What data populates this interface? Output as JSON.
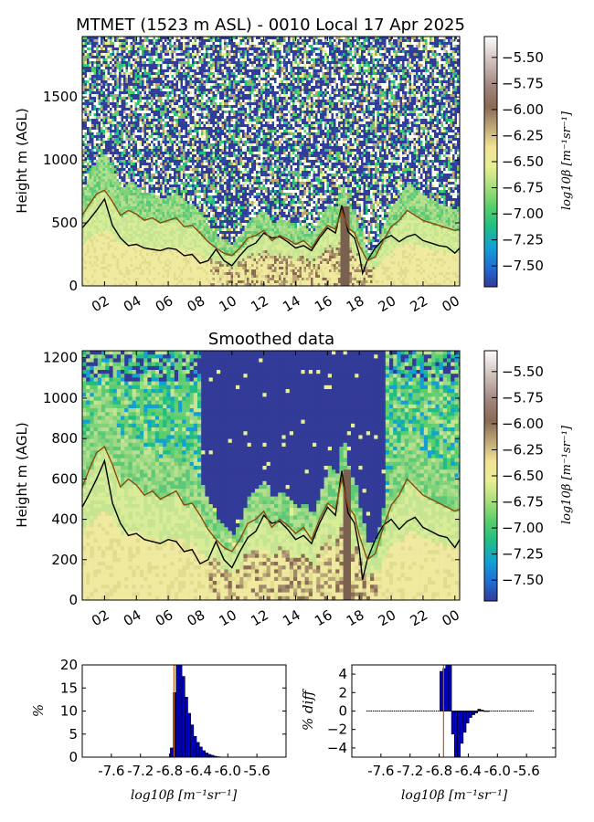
{
  "chart_data": [
    {
      "type": "heatmap",
      "title": "MTMET (1523 m ASL) - 0010 Local 17 Apr 2025",
      "xlabel": "",
      "ylabel": "Height m (AGL)",
      "x_ticks": [
        "02",
        "04",
        "06",
        "08",
        "10",
        "12",
        "14",
        "16",
        "18",
        "20",
        "22",
        "00"
      ],
      "x_range_hours": [
        0.6,
        24.3
      ],
      "y_ticks": [
        "0",
        "500",
        "1000",
        "1500"
      ],
      "y_tick_values": [
        0,
        500,
        1000,
        1500
      ],
      "ylim": [
        0,
        1980
      ],
      "colorbar_label": "log10β [m⁻¹sr⁻¹]",
      "colorbar_ticks": [
        "−5.50",
        "−5.75",
        "−6.00",
        "−6.25",
        "−6.50",
        "−6.75",
        "−7.00",
        "−7.25",
        "−7.50"
      ],
      "colorbar_range": [
        -7.7,
        -5.3
      ],
      "series": [
        {
          "color": "#000000",
          "x": [
            0.6,
            1,
            1.5,
            2,
            2.5,
            3,
            3.5,
            4,
            4.5,
            5,
            5.5,
            6,
            6.5,
            7,
            7.5,
            8,
            8.5,
            9,
            9.5,
            10,
            10.5,
            11,
            11.5,
            12,
            12.5,
            13,
            13.5,
            14,
            14.5,
            15,
            15.5,
            16,
            16.5,
            16.9,
            17.3,
            17.7,
            18,
            18.2,
            18.5,
            19,
            19.5,
            20,
            20.5,
            21,
            21.5,
            22,
            22.5,
            23,
            23.5,
            24,
            24.3
          ],
          "y": [
            460,
            520,
            600,
            690,
            480,
            380,
            320,
            330,
            300,
            290,
            280,
            300,
            290,
            240,
            250,
            180,
            200,
            290,
            200,
            160,
            240,
            310,
            340,
            420,
            380,
            390,
            350,
            300,
            320,
            280,
            380,
            460,
            420,
            640,
            430,
            380,
            250,
            100,
            200,
            300,
            370,
            400,
            350,
            390,
            410,
            360,
            340,
            320,
            310,
            260,
            300
          ]
        },
        {
          "color": "#8b4a0c",
          "x": [
            0.6,
            1,
            1.5,
            2,
            2.5,
            3,
            3.5,
            4,
            4.5,
            5,
            5.5,
            6,
            6.5,
            7,
            7.5,
            8,
            8.5,
            9,
            9.5,
            10,
            10.5,
            11,
            11.5,
            12,
            12.5,
            13,
            13.5,
            14,
            14.5,
            15,
            15.5,
            16,
            16.5,
            16.9,
            17.3,
            17.7,
            18,
            18.5,
            19,
            19.5,
            20,
            20.5,
            21,
            21.5,
            22,
            22.5,
            23,
            23.5,
            24,
            24.3
          ],
          "y": [
            560,
            640,
            730,
            760,
            670,
            560,
            600,
            570,
            520,
            540,
            500,
            520,
            540,
            470,
            480,
            420,
            350,
            300,
            260,
            240,
            300,
            380,
            400,
            440,
            360,
            400,
            370,
            330,
            360,
            300,
            400,
            480,
            450,
            600,
            460,
            420,
            320,
            200,
            230,
            360,
            470,
            520,
            600,
            560,
            520,
            500,
            480,
            460,
            440,
            450
          ]
        }
      ]
    },
    {
      "type": "heatmap",
      "title": "Smoothed data",
      "xlabel": "",
      "ylabel": "Height m (AGL)",
      "x_ticks": [
        "02",
        "04",
        "06",
        "08",
        "10",
        "12",
        "14",
        "16",
        "18",
        "20",
        "22",
        "00"
      ],
      "x_range_hours": [
        0.6,
        24.3
      ],
      "y_ticks": [
        "0",
        "200",
        "400",
        "600",
        "800",
        "1000",
        "1200"
      ],
      "y_tick_values": [
        0,
        200,
        400,
        600,
        800,
        1000,
        1200
      ],
      "ylim": [
        0,
        1235
      ],
      "colorbar_label": "log10β [m⁻¹sr⁻¹]",
      "colorbar_ticks": [
        "−5.50",
        "−5.75",
        "−6.00",
        "−6.25",
        "−6.50",
        "−6.75",
        "−7.00",
        "−7.25",
        "−7.50"
      ],
      "colorbar_range": [
        -7.7,
        -5.3
      ],
      "series": [
        {
          "color": "#000000",
          "x": [
            0.6,
            1,
            1.5,
            2,
            2.5,
            3,
            3.5,
            4,
            4.5,
            5,
            5.5,
            6,
            6.5,
            7,
            7.5,
            8,
            8.5,
            9,
            9.5,
            10,
            10.5,
            11,
            11.5,
            12,
            12.5,
            13,
            13.5,
            14,
            14.5,
            15,
            15.5,
            16,
            16.5,
            16.9,
            17.3,
            17.7,
            18,
            18.2,
            18.5,
            19,
            19.5,
            20,
            20.5,
            21,
            21.5,
            22,
            22.5,
            23,
            23.5,
            24,
            24.3
          ],
          "y": [
            460,
            520,
            600,
            690,
            480,
            380,
            320,
            330,
            300,
            290,
            280,
            300,
            290,
            240,
            250,
            180,
            200,
            290,
            200,
            160,
            240,
            310,
            340,
            420,
            380,
            390,
            350,
            300,
            320,
            280,
            380,
            460,
            420,
            640,
            430,
            380,
            250,
            100,
            200,
            300,
            370,
            400,
            350,
            390,
            410,
            360,
            340,
            320,
            310,
            260,
            300
          ]
        },
        {
          "color": "#8b4a0c",
          "x": [
            0.6,
            1,
            1.5,
            2,
            2.5,
            3,
            3.5,
            4,
            4.5,
            5,
            5.5,
            6,
            6.5,
            7,
            7.5,
            8,
            8.5,
            9,
            9.5,
            10,
            10.5,
            11,
            11.5,
            12,
            12.5,
            13,
            13.5,
            14,
            14.5,
            15,
            15.5,
            16,
            16.5,
            16.9,
            17.3,
            17.7,
            18,
            18.5,
            19,
            19.5,
            20,
            20.5,
            21,
            21.5,
            22,
            22.5,
            23,
            23.5,
            24,
            24.3
          ],
          "y": [
            560,
            640,
            730,
            760,
            670,
            560,
            600,
            570,
            520,
            540,
            500,
            520,
            540,
            470,
            480,
            420,
            350,
            300,
            260,
            240,
            300,
            380,
            400,
            440,
            360,
            400,
            370,
            330,
            360,
            300,
            400,
            480,
            450,
            600,
            460,
            420,
            320,
            200,
            230,
            360,
            470,
            520,
            600,
            560,
            520,
            500,
            480,
            460,
            440,
            450
          ]
        }
      ]
    },
    {
      "type": "bar",
      "title": "",
      "xlabel": "log10β [m⁻¹sr⁻¹]",
      "ylabel": "%",
      "x_ticks": [
        "-7.6",
        "-7.2",
        "-6.8",
        "-6.4",
        "-6.0",
        "-5.6"
      ],
      "x_tick_values": [
        -7.6,
        -7.2,
        -6.8,
        -6.4,
        -6.0,
        -5.6
      ],
      "xlim": [
        -8.0,
        -5.2
      ],
      "y_ticks": [
        "0",
        "5",
        "10",
        "15",
        "20"
      ],
      "y_tick_values": [
        0,
        5,
        10,
        15,
        20
      ],
      "ylim": [
        0,
        20
      ],
      "marker_line_x": -6.74,
      "bins": [
        -6.77,
        -6.73,
        -6.69,
        -6.65,
        -6.61,
        -6.57,
        -6.53,
        -6.49,
        -6.45,
        -6.41,
        -6.37,
        -6.33,
        -6.29,
        -6.25,
        -6.21,
        -6.17,
        -6.13
      ],
      "values": [
        2.0,
        14.0,
        20,
        20,
        17.5,
        13.0,
        9.5,
        7.0,
        4.5,
        3.2,
        2.2,
        1.4,
        0.9,
        0.6,
        0.4,
        0.2,
        0.1
      ]
    },
    {
      "type": "bar",
      "title": "",
      "xlabel": "log10β [m⁻¹sr⁻¹]",
      "ylabel": "% diff",
      "x_ticks": [
        "-7.6",
        "-7.2",
        "-6.8",
        "-6.4",
        "-6.0",
        "-5.6"
      ],
      "x_tick_values": [
        -7.6,
        -7.2,
        -6.8,
        -6.4,
        -6.0,
        -5.6
      ],
      "xlim": [
        -8.0,
        -5.2
      ],
      "y_ticks": [
        "−4",
        "−2",
        "0",
        "2",
        "4"
      ],
      "y_tick_values": [
        -4,
        -2,
        0,
        2,
        4
      ],
      "ylim": [
        -5,
        5
      ],
      "marker_line_x": -6.74,
      "bins": [
        -6.77,
        -6.73,
        -6.69,
        -6.65,
        -6.61,
        -6.57,
        -6.53,
        -6.49,
        -6.45,
        -6.41,
        -6.37,
        -6.33,
        -6.29,
        -6.25,
        -6.21,
        -6.17,
        -6.13
      ],
      "values": [
        4.3,
        4.6,
        5.0,
        5.0,
        -2.5,
        -5.0,
        -5.0,
        -3.5,
        -2.3,
        -1.3,
        -0.7,
        -0.4,
        -0.2,
        0.2,
        0.1,
        0.0,
        0.0
      ],
      "baseline_range": [
        -7.8,
        -5.5
      ]
    }
  ]
}
